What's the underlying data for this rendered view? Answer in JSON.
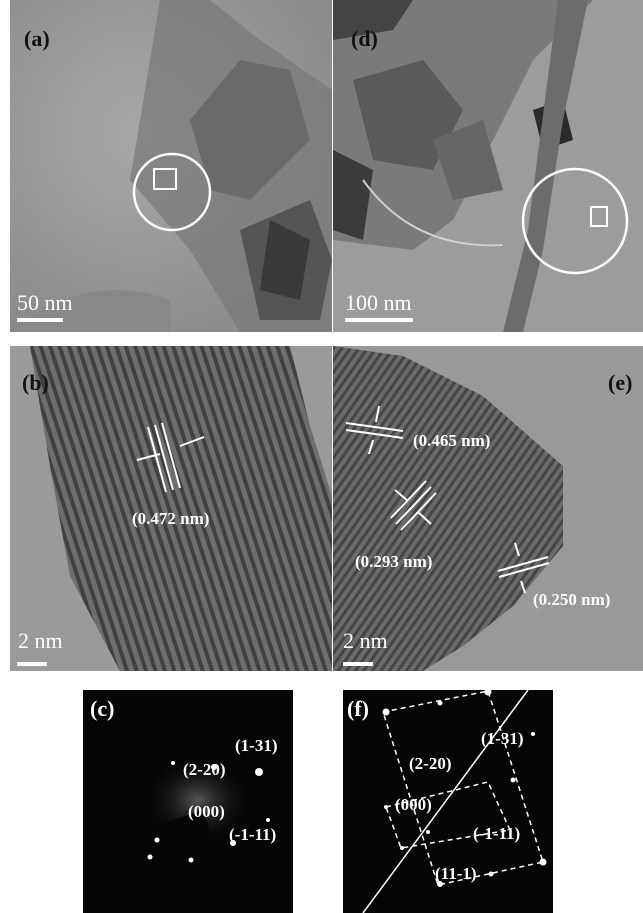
{
  "panels": {
    "a": {
      "label": "(a)",
      "scale_bar": "50 nm"
    },
    "d": {
      "label": "(d)",
      "scale_bar": "100 nm"
    },
    "b": {
      "label": "(b)",
      "scale_bar": "2 nm",
      "spacings": [
        "(0.472 nm)"
      ]
    },
    "e": {
      "label": "(e)",
      "scale_bar": "2 nm",
      "spacings": [
        "(0.465 nm)",
        "(0.293 nm)",
        "(0.250 nm)"
      ]
    },
    "c": {
      "label": "(c)",
      "spots": [
        "(1-31)",
        "(2-20)",
        "(000)",
        "(-1-11)"
      ]
    },
    "f": {
      "label": "(f)",
      "spots": [
        "(1-31)",
        "(2-20)",
        "(000)",
        "(-1-11)",
        "(11-1)"
      ]
    }
  },
  "colors": {
    "tem_background": "#9a9a9a",
    "saed_background": "#050505",
    "annotation": "#ffffff"
  }
}
